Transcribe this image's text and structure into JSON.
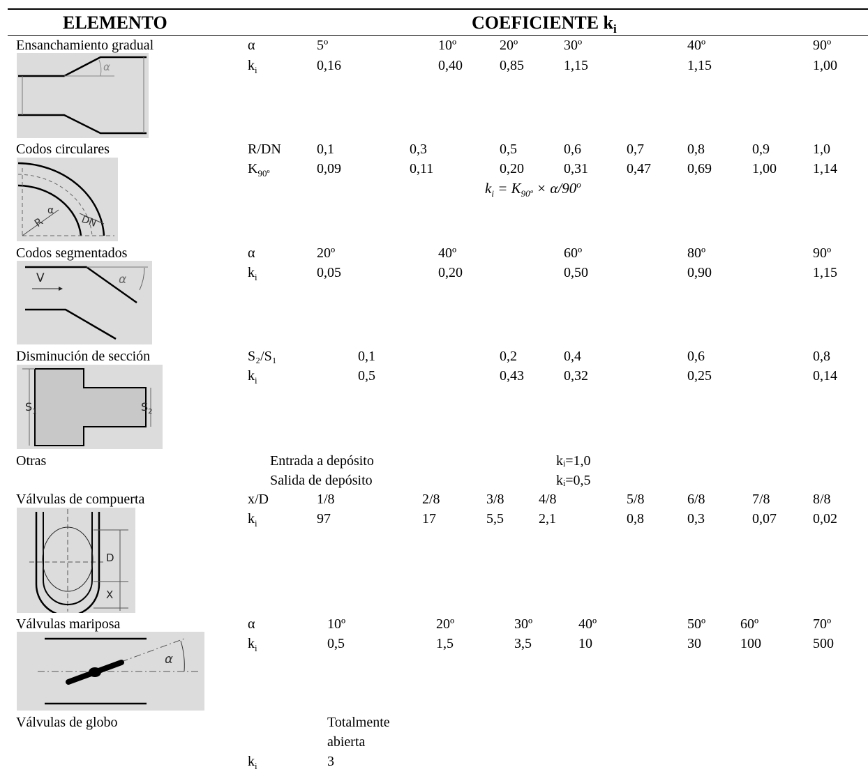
{
  "header": {
    "elemento": "ELEMENTO",
    "coeficiente": "COEFICIENTE k",
    "coef_sub": "i"
  },
  "sections": {
    "ens": {
      "name": "Ensanchamiento gradual",
      "row1_label": "α",
      "row1": [
        "5º",
        "10º",
        "20º",
        "30º",
        "40º",
        "90º"
      ],
      "row2_label": "k",
      "row2": [
        "0,16",
        "0,40",
        "0,85",
        "1,15",
        "1,15",
        "1,00"
      ]
    },
    "codos_c": {
      "name": "Codos circulares",
      "row1_label": "R/DN",
      "row1": [
        "0,1",
        "0,3",
        "0,5",
        "0,6",
        "0,7",
        "0,8",
        "0,9",
        "1,0"
      ],
      "row2_label": "K",
      "row2_label_sub": "90º",
      "row2": [
        "0,09",
        "0,11",
        "0,20",
        "0,31",
        "0,47",
        "0,69",
        "1,00",
        "1,14"
      ],
      "formula_left": "k",
      "formula_left_sub": "i",
      "formula_mid": " = K",
      "formula_mid_sub": "90º",
      "formula_right": " × α/90",
      "formula_sup": "o"
    },
    "codos_s": {
      "name": "Codos segmentados",
      "row1_label": "α",
      "row1": [
        "20º",
        "40º",
        "60º",
        "80º",
        "90º"
      ],
      "row2_label": "k",
      "row2": [
        "0,05",
        "0,20",
        "0,50",
        "0,90",
        "1,15"
      ]
    },
    "dism": {
      "name": "Disminución de sección",
      "row1_label": "S₂/S₁",
      "row1": [
        "0,1",
        "0,2",
        "0,4",
        "0,6",
        "0,8"
      ],
      "row2_label": "k",
      "row2": [
        "0,5",
        "0,43",
        "0,32",
        "0,25",
        "0,14"
      ]
    },
    "otras": {
      "name": "Otras",
      "items": [
        {
          "label": "Entrada a depósito",
          "value": "kᵢ=1,0"
        },
        {
          "label": "Salida de depósito",
          "value": "kᵢ=0,5"
        }
      ]
    },
    "compuerta": {
      "name": "Válvulas de compuerta",
      "row1_label": "x/D",
      "row1": [
        "1/8",
        "2/8",
        "3/8",
        "4/8",
        "5/8",
        "6/8",
        "7/8",
        "8/8"
      ],
      "row2_label": "k",
      "row2": [
        "97",
        "17",
        "5,5",
        "2,1",
        "0,8",
        "0,3",
        "0,07",
        "0,02"
      ]
    },
    "mariposa": {
      "name": "Válvulas mariposa",
      "row1_label": "α",
      "row1": [
        "10º",
        "20º",
        "30º",
        "40º",
        "50º",
        "60º",
        "70º"
      ],
      "row2_label": "k",
      "row2": [
        "0,5",
        "1,5",
        "3,5",
        "10",
        "30",
        "100",
        "500"
      ]
    },
    "globo": {
      "name": "Válvulas de globo",
      "col_line1": "Totalmente",
      "col_line2": "abierta",
      "row2_label": "k",
      "value": "3"
    }
  },
  "subscript_i": "i",
  "figure_labels": {
    "alpha": "α",
    "R": "R",
    "DN": "DN",
    "V": "V",
    "S1": "S",
    "S1_sub": "1",
    "S2": "S",
    "S2_sub": "2",
    "D": "D",
    "X": "X"
  }
}
